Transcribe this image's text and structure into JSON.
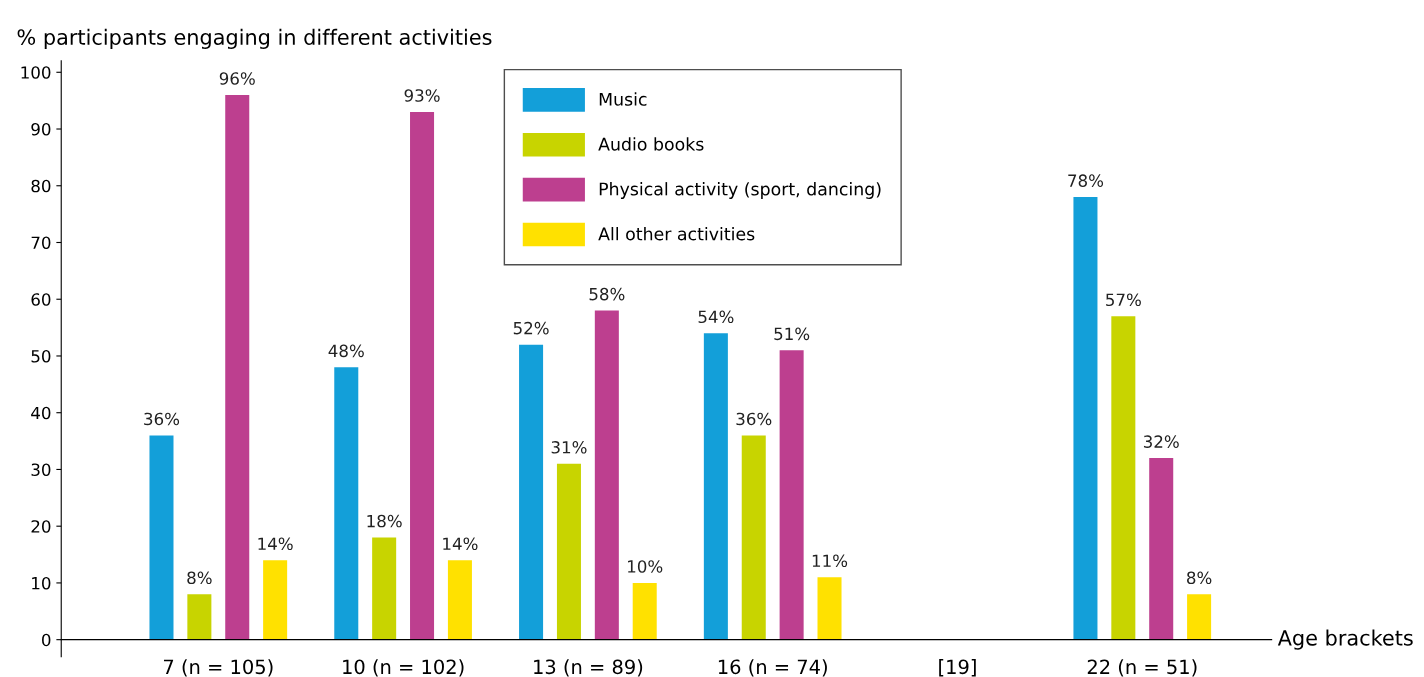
{
  "chart_data": {
    "type": "bar",
    "ylabel": "% participants engaging in different activities",
    "xlabel": "Age brackets",
    "categories": [
      "7 (n = 105)",
      "10 (n = 102)",
      "13 (n = 89)",
      "16 (n = 74)",
      "[19]",
      "22 (n = 51)"
    ],
    "series": [
      {
        "name": "Music",
        "color": "#139fd9",
        "values": [
          36,
          48,
          52,
          54,
          null,
          78
        ],
        "value_labels": [
          "36%",
          "48%",
          "52%",
          "54%",
          null,
          "78%"
        ]
      },
      {
        "name": "Audio books",
        "color": "#c8d400",
        "values": [
          8,
          18,
          31,
          36,
          null,
          57
        ],
        "value_labels": [
          "8%",
          "18%",
          "31%",
          "36%",
          null,
          "57%"
        ]
      },
      {
        "name": "Physical activity (sport, dancing)",
        "color": "#bd3f8f",
        "values": [
          96,
          93,
          58,
          51,
          null,
          32
        ],
        "value_labels": [
          "96%",
          "93%",
          "58%",
          "51%",
          null,
          "32%"
        ]
      },
      {
        "name": "All other activities",
        "color": "#ffe100",
        "values": [
          14,
          14,
          10,
          11,
          null,
          8
        ],
        "value_labels": [
          "14%",
          "14%",
          "10%",
          "11%",
          null,
          "8%"
        ]
      }
    ],
    "ylim": [
      -3,
      102
    ],
    "yticks": [
      0,
      10,
      20,
      30,
      40,
      50,
      60,
      70,
      80,
      90,
      100
    ],
    "legend": "top",
    "grid": false
  }
}
